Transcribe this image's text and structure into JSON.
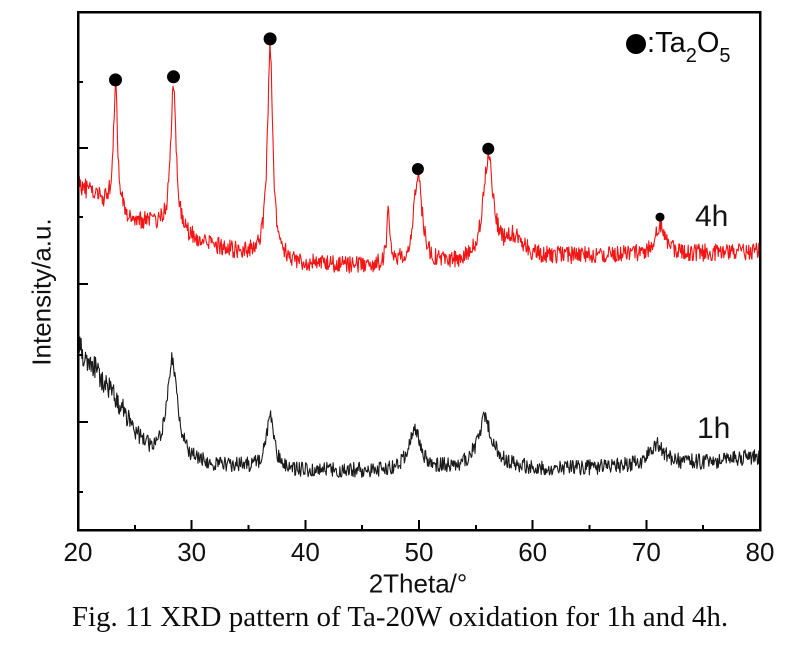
{
  "figure": {
    "caption": "Fig. 11 XRD pattern of Ta-20W oxidation for 1h and 4h.",
    "legend": {
      "marker_symbol": "filled-circle",
      "separator": ":",
      "formula_parts": [
        {
          "text": "Ta",
          "sub": false
        },
        {
          "text": "2",
          "sub": true
        },
        {
          "text": "O",
          "sub": false
        },
        {
          "text": "5",
          "sub": true
        }
      ]
    }
  },
  "chart_data": {
    "type": "line",
    "title": "",
    "xlabel": "2Theta/°",
    "ylabel": "Intensity/a.u.",
    "xlim": [
      20,
      80
    ],
    "ylim": [
      0,
      1000
    ],
    "x_major_ticks": [
      20,
      30,
      40,
      50,
      60,
      70,
      80
    ],
    "x_minor_ticks": [
      25,
      35,
      45,
      55,
      65,
      75
    ],
    "grid": false,
    "frame": true,
    "legend_position": "top-right",
    "marker_color": "#000000",
    "marked_phase": "Ta2O5",
    "sample_step_deg": 0.055,
    "series": [
      {
        "name": "1h",
        "color": "#1a1a1a",
        "seed": 4021,
        "noise_base": 9,
        "noise_scale": 0.05,
        "baseline": [
          [
            20,
            350
          ],
          [
            20.5,
            338
          ],
          [
            21,
            322
          ],
          [
            21.5,
            310
          ],
          [
            22,
            295
          ],
          [
            23,
            262
          ],
          [
            24,
            228
          ],
          [
            25,
            188
          ],
          [
            26,
            158
          ],
          [
            27,
            142
          ],
          [
            28,
            135
          ],
          [
            29,
            130
          ],
          [
            30,
            128
          ],
          [
            32,
            125
          ],
          [
            34,
            122
          ],
          [
            36,
            120
          ],
          [
            38,
            117
          ],
          [
            40,
            115
          ],
          [
            43,
            114
          ],
          [
            46,
            114
          ],
          [
            49,
            116
          ],
          [
            52,
            117
          ],
          [
            55,
            118
          ],
          [
            58,
            119
          ],
          [
            61,
            117
          ],
          [
            64,
            118
          ],
          [
            67,
            121
          ],
          [
            70,
            124
          ],
          [
            73,
            128
          ],
          [
            76,
            133
          ],
          [
            80,
            141
          ]
        ],
        "peaks": [
          {
            "center": 28.3,
            "amplitude": 195,
            "hwhm": 0.55,
            "marked": false
          },
          {
            "center": 36.9,
            "amplitude": 102,
            "hwhm": 0.38,
            "marked": false
          },
          {
            "center": 49.6,
            "amplitude": 78,
            "hwhm": 0.6,
            "marked": false
          },
          {
            "center": 55.8,
            "amplitude": 95,
            "hwhm": 0.8,
            "marked": false
          },
          {
            "center": 70.9,
            "amplitude": 40,
            "hwhm": 0.8,
            "marked": false
          }
        ]
      },
      {
        "name": "4h",
        "color": "#f41414",
        "seed": 911,
        "noise_base": 11,
        "noise_scale": 0.011,
        "baseline": [
          [
            20,
            668
          ],
          [
            21,
            652
          ],
          [
            22,
            636
          ],
          [
            23,
            620
          ],
          [
            24,
            604
          ],
          [
            25,
            597
          ],
          [
            26,
            592
          ],
          [
            27,
            586
          ],
          [
            28,
            580
          ],
          [
            29,
            570
          ],
          [
            30,
            561
          ],
          [
            32,
            547
          ],
          [
            34,
            537
          ],
          [
            36,
            529
          ],
          [
            38,
            520
          ],
          [
            40,
            514
          ],
          [
            43,
            510
          ],
          [
            46,
            509
          ],
          [
            50,
            510
          ],
          [
            53,
            511
          ],
          [
            56,
            514
          ],
          [
            60,
            524
          ],
          [
            64,
            529
          ],
          [
            68,
            531
          ],
          [
            72,
            533
          ],
          [
            76,
            535
          ],
          [
            80,
            539
          ]
        ],
        "peaks": [
          {
            "center": 23.3,
            "amplitude": 245,
            "hwhm": 0.22,
            "marked": true,
            "marker_intensity": 869,
            "marker_radius": 6.5
          },
          {
            "center": 28.4,
            "amplitude": 285,
            "hwhm": 0.28,
            "marked": true,
            "marker_intensity": 875,
            "marker_radius": 6.5
          },
          {
            "center": 36.9,
            "amplitude": 410,
            "hwhm": 0.28,
            "marked": true,
            "marker_intensity": 948,
            "marker_radius": 6.5
          },
          {
            "center": 47.3,
            "amplitude": 95,
            "hwhm": 0.18,
            "marked": false
          },
          {
            "center": 49.9,
            "amplitude": 170,
            "hwhm": 0.45,
            "marked": true,
            "marker_intensity": 697,
            "marker_radius": 6
          },
          {
            "center": 56.1,
            "amplitude": 200,
            "hwhm": 0.55,
            "marked": true,
            "marker_intensity": 736,
            "marker_radius": 6
          },
          {
            "center": 58.4,
            "amplitude": 40,
            "hwhm": 0.9,
            "marked": false
          },
          {
            "center": 71.2,
            "amplitude": 55,
            "hwhm": 0.5,
            "marked": true,
            "marker_intensity": 604,
            "marker_radius": 4.5
          }
        ]
      }
    ]
  }
}
